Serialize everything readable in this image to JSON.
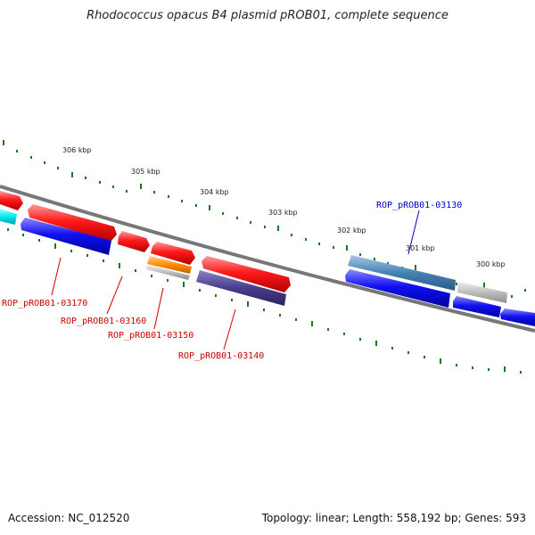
{
  "title": "Rhodococcus opacus B4 plasmid pROB01, complete sequence",
  "footer": {
    "accession": "Accession: NC_012520",
    "summary": "Topology: linear; Length: 558,192 bp; Genes: 593"
  },
  "scale_labels": [
    "306 kbp",
    "305 kbp",
    "304 kbp",
    "303 kbp",
    "302 kbp",
    "301 kbp",
    "300 kbp"
  ],
  "gene_labels": [
    {
      "text": "ROP_pROB01-03170",
      "color": "#cc0000"
    },
    {
      "text": "ROP_pROB01-03160",
      "color": "#cc0000"
    },
    {
      "text": "ROP_pROB01-03150",
      "color": "#cc0000"
    },
    {
      "text": "ROP_pROB01-03140",
      "color": "#cc0000"
    },
    {
      "text": "ROP_pROB01-03130",
      "color": "#0000cc"
    }
  ],
  "colors": {
    "backbone": "#777777",
    "ticks": "#1a7a1a",
    "red_gene": "#ee0000",
    "blue_gene": "#0000ee",
    "cyan_gene": "#00e5ee",
    "orange_gene": "#ff8c00",
    "purple_gene": "#483d8b",
    "steel_gene": "#4682b4",
    "gray_gene": "#b0b0b0"
  }
}
